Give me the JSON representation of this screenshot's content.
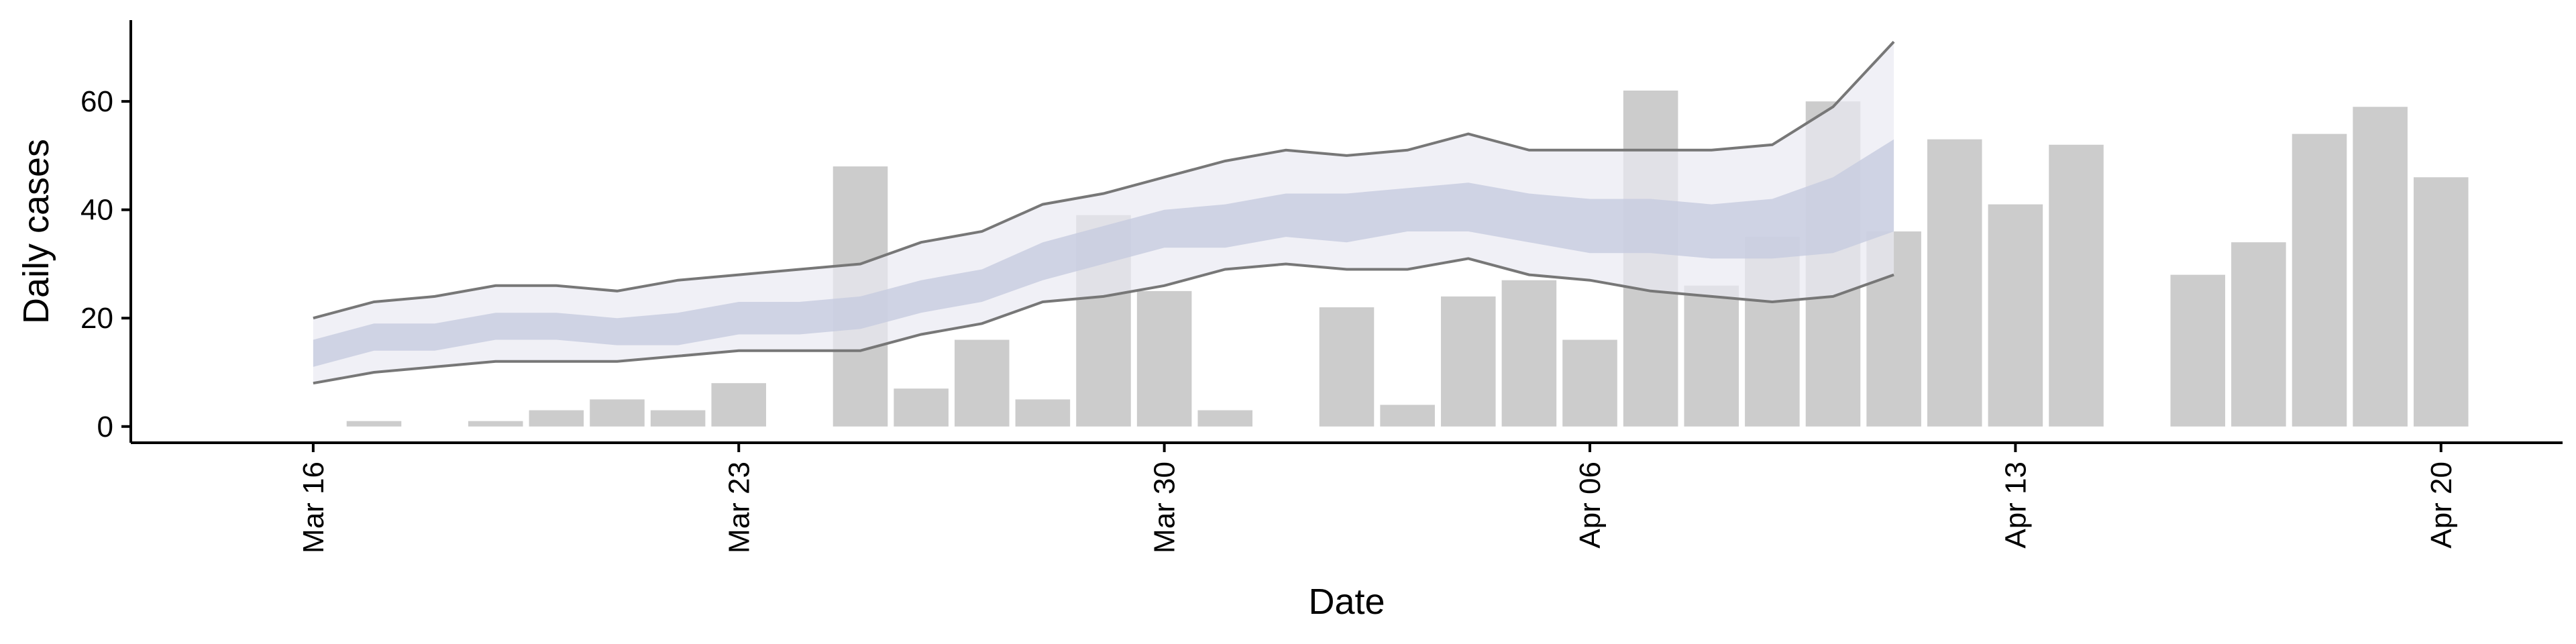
{
  "chart_data": {
    "type": "bar",
    "xlabel": "Date",
    "ylabel": "Daily cases",
    "ylim": [
      -3,
      75
    ],
    "yticks": [
      0,
      20,
      40,
      60
    ],
    "xlim": [
      "2020-03-13",
      "2020-04-22"
    ],
    "xticks": [
      {
        "date": "2020-03-16",
        "label": "Mar 16"
      },
      {
        "date": "2020-03-23",
        "label": "Mar 23"
      },
      {
        "date": "2020-03-30",
        "label": "Mar 30"
      },
      {
        "date": "2020-04-06",
        "label": "Apr 06"
      },
      {
        "date": "2020-04-13",
        "label": "Apr 13"
      },
      {
        "date": "2020-04-20",
        "label": "Apr 20"
      }
    ],
    "grid": false,
    "colors": {
      "bars": "#cccccc",
      "outer_band": "#e9eaf2",
      "inner_band": "#c7cce0",
      "bound_line": "#777777"
    },
    "bars": [
      {
        "date": "2020-03-17",
        "value": 1
      },
      {
        "date": "2020-03-19",
        "value": 1
      },
      {
        "date": "2020-03-20",
        "value": 3
      },
      {
        "date": "2020-03-21",
        "value": 5
      },
      {
        "date": "2020-03-22",
        "value": 3
      },
      {
        "date": "2020-03-23",
        "value": 8
      },
      {
        "date": "2020-03-25",
        "value": 48
      },
      {
        "date": "2020-03-26",
        "value": 7
      },
      {
        "date": "2020-03-27",
        "value": 16
      },
      {
        "date": "2020-03-28",
        "value": 5
      },
      {
        "date": "2020-03-29",
        "value": 39
      },
      {
        "date": "2020-03-30",
        "value": 25
      },
      {
        "date": "2020-03-31",
        "value": 3
      },
      {
        "date": "2020-04-02",
        "value": 22
      },
      {
        "date": "2020-04-03",
        "value": 4
      },
      {
        "date": "2020-04-04",
        "value": 24
      },
      {
        "date": "2020-04-05",
        "value": 27
      },
      {
        "date": "2020-04-06",
        "value": 16
      },
      {
        "date": "2020-04-07",
        "value": 62
      },
      {
        "date": "2020-04-08",
        "value": 26
      },
      {
        "date": "2020-04-09",
        "value": 35
      },
      {
        "date": "2020-04-10",
        "value": 60
      },
      {
        "date": "2020-04-11",
        "value": 36
      },
      {
        "date": "2020-04-12",
        "value": 53
      },
      {
        "date": "2020-04-13",
        "value": 41
      },
      {
        "date": "2020-04-14",
        "value": 52
      },
      {
        "date": "2020-04-16",
        "value": 28
      },
      {
        "date": "2020-04-17",
        "value": 34
      },
      {
        "date": "2020-04-18",
        "value": 54
      },
      {
        "date": "2020-04-19",
        "value": 59
      },
      {
        "date": "2020-04-20",
        "value": 46
      }
    ],
    "bands": {
      "dates": [
        "2020-03-16",
        "2020-03-17",
        "2020-03-18",
        "2020-03-19",
        "2020-03-20",
        "2020-03-21",
        "2020-03-22",
        "2020-03-23",
        "2020-03-24",
        "2020-03-25",
        "2020-03-26",
        "2020-03-27",
        "2020-03-28",
        "2020-03-29",
        "2020-03-30",
        "2020-03-31",
        "2020-04-01",
        "2020-04-02",
        "2020-04-03",
        "2020-04-04",
        "2020-04-05",
        "2020-04-06",
        "2020-04-07",
        "2020-04-08",
        "2020-04-09",
        "2020-04-10",
        "2020-04-11"
      ],
      "outer_upper": [
        20,
        23,
        24,
        26,
        26,
        25,
        27,
        28,
        29,
        30,
        34,
        36,
        41,
        43,
        46,
        49,
        51,
        50,
        51,
        54,
        51,
        51,
        51,
        51,
        52,
        59,
        71
      ],
      "outer_lower": [
        8,
        10,
        11,
        12,
        12,
        12,
        13,
        14,
        14,
        14,
        17,
        19,
        23,
        24,
        26,
        29,
        30,
        29,
        29,
        31,
        28,
        27,
        25,
        24,
        23,
        24,
        28
      ],
      "inner_upper": [
        16,
        19,
        19,
        21,
        21,
        20,
        21,
        23,
        23,
        24,
        27,
        29,
        34,
        37,
        40,
        41,
        43,
        43,
        44,
        45,
        43,
        42,
        42,
        41,
        42,
        46,
        53
      ],
      "inner_lower": [
        11,
        14,
        14,
        16,
        16,
        15,
        15,
        17,
        17,
        18,
        21,
        23,
        27,
        30,
        33,
        33,
        35,
        34,
        36,
        36,
        34,
        32,
        32,
        31,
        31,
        32,
        36
      ]
    }
  }
}
